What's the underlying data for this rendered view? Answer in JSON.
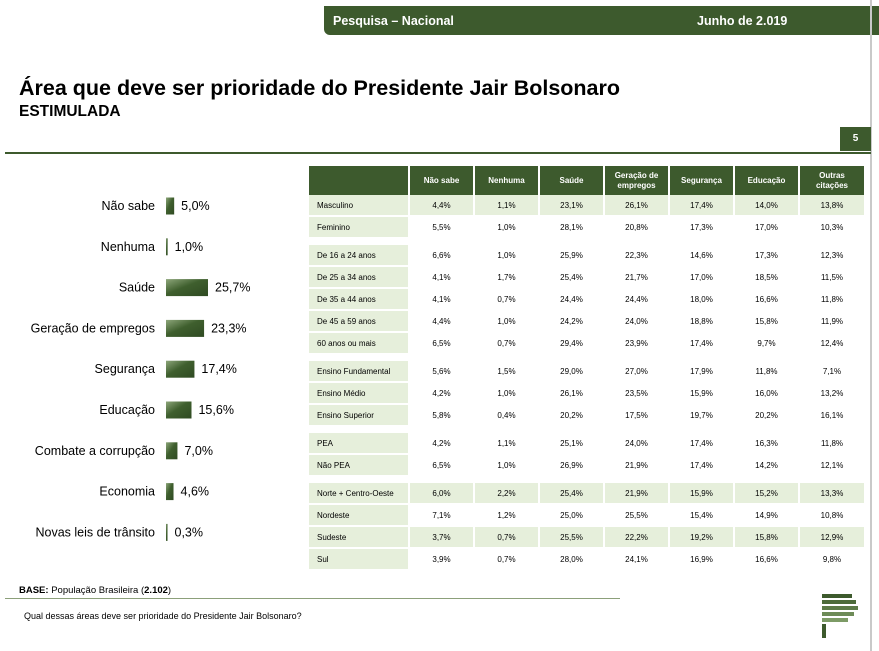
{
  "header": {
    "survey_label": "Pesquisa – Nacional",
    "date_label": "Junho de 2.019"
  },
  "title": "Área que deve ser prioridade do Presidente Jair Bolsonaro",
  "subtitle": "ESTIMULADA",
  "page_number": "5",
  "footer": {
    "base_label": "BASE:",
    "base_text": " População Brasileira (",
    "base_count": "2.102",
    "base_close": ")",
    "question": "Qual dessas áreas deve ser prioridade do Presidente Jair Bolsonaro?"
  },
  "colors": {
    "brand_green": "#3d5a2d",
    "row_tint": "#e6efdb"
  },
  "chart_data": {
    "type": "bar",
    "orientation": "horizontal",
    "title": "",
    "categories": [
      "Não sabe",
      "Nenhuma",
      "Saúde",
      "Geração de empregos",
      "Segurança",
      "Educação",
      "Combate a corrupção",
      "Economia",
      "Novas leis de trânsito"
    ],
    "values": [
      5.0,
      1.0,
      25.7,
      23.3,
      17.4,
      15.6,
      7.0,
      4.6,
      0.3
    ],
    "value_labels": [
      "5,0%",
      "1,0%",
      "25,7%",
      "23,3%",
      "17,4%",
      "15,6%",
      "7,0%",
      "4,6%",
      "0,3%"
    ],
    "xlim": [
      0,
      30
    ],
    "grid": false,
    "legend": "none"
  },
  "table": {
    "columns": [
      "Não sabe",
      "Nenhuma",
      "Saúde",
      "Geração de empregos",
      "Segurança",
      "Educação",
      "Outras citações"
    ],
    "groups": [
      [
        {
          "label": "Masculino",
          "values": [
            "4,4%",
            "1,1%",
            "23,1%",
            "26,1%",
            "17,4%",
            "14,0%",
            "13,8%"
          ]
        },
        {
          "label": "Feminino",
          "values": [
            "5,5%",
            "1,0%",
            "28,1%",
            "20,8%",
            "17,3%",
            "17,0%",
            "10,3%"
          ]
        }
      ],
      [
        {
          "label": "De 16 a 24 anos",
          "values": [
            "6,6%",
            "1,0%",
            "25,9%",
            "22,3%",
            "14,6%",
            "17,3%",
            "12,3%"
          ]
        },
        {
          "label": "De 25 a 34 anos",
          "values": [
            "4,1%",
            "1,7%",
            "25,4%",
            "21,7%",
            "17,0%",
            "18,5%",
            "11,5%"
          ]
        },
        {
          "label": "De 35 a 44 anos",
          "values": [
            "4,1%",
            "0,7%",
            "24,4%",
            "24,4%",
            "18,0%",
            "16,6%",
            "11,8%"
          ]
        },
        {
          "label": "De 45 a 59 anos",
          "values": [
            "4,4%",
            "1,0%",
            "24,2%",
            "24,0%",
            "18,8%",
            "15,8%",
            "11,9%"
          ]
        },
        {
          "label": "60 anos ou mais",
          "values": [
            "6,5%",
            "0,7%",
            "29,4%",
            "23,9%",
            "17,4%",
            "9,7%",
            "12,4%"
          ]
        }
      ],
      [
        {
          "label": "Ensino Fundamental",
          "values": [
            "5,6%",
            "1,5%",
            "29,0%",
            "27,0%",
            "17,9%",
            "11,8%",
            "7,1%"
          ]
        },
        {
          "label": "Ensino Médio",
          "values": [
            "4,2%",
            "1,0%",
            "26,1%",
            "23,5%",
            "15,9%",
            "16,0%",
            "13,2%"
          ]
        },
        {
          "label": "Ensino Superior",
          "values": [
            "5,8%",
            "0,4%",
            "20,2%",
            "17,5%",
            "19,7%",
            "20,2%",
            "16,1%"
          ]
        }
      ],
      [
        {
          "label": " PEA",
          "values": [
            "4,2%",
            "1,1%",
            "25,1%",
            "24,0%",
            "17,4%",
            "16,3%",
            "11,8%"
          ]
        },
        {
          "label": " Não PEA",
          "values": [
            "6,5%",
            "1,0%",
            "26,9%",
            "21,9%",
            "17,4%",
            "14,2%",
            "12,1%"
          ]
        }
      ],
      [
        {
          "label": "Norte + Centro-Oeste",
          "values": [
            "6,0%",
            "2,2%",
            "25,4%",
            "21,9%",
            "15,9%",
            "15,2%",
            "13,3%"
          ]
        },
        {
          "label": "Nordeste",
          "values": [
            "7,1%",
            "1,2%",
            "25,0%",
            "25,5%",
            "15,4%",
            "14,9%",
            "10,8%"
          ]
        },
        {
          "label": "Sudeste",
          "values": [
            "3,7%",
            "0,7%",
            "25,5%",
            "22,2%",
            "19,2%",
            "15,8%",
            "12,9%"
          ]
        },
        {
          "label": "Sul",
          "values": [
            "3,9%",
            "0,7%",
            "28,0%",
            "24,1%",
            "16,9%",
            "16,6%",
            "9,8%"
          ]
        }
      ]
    ]
  }
}
